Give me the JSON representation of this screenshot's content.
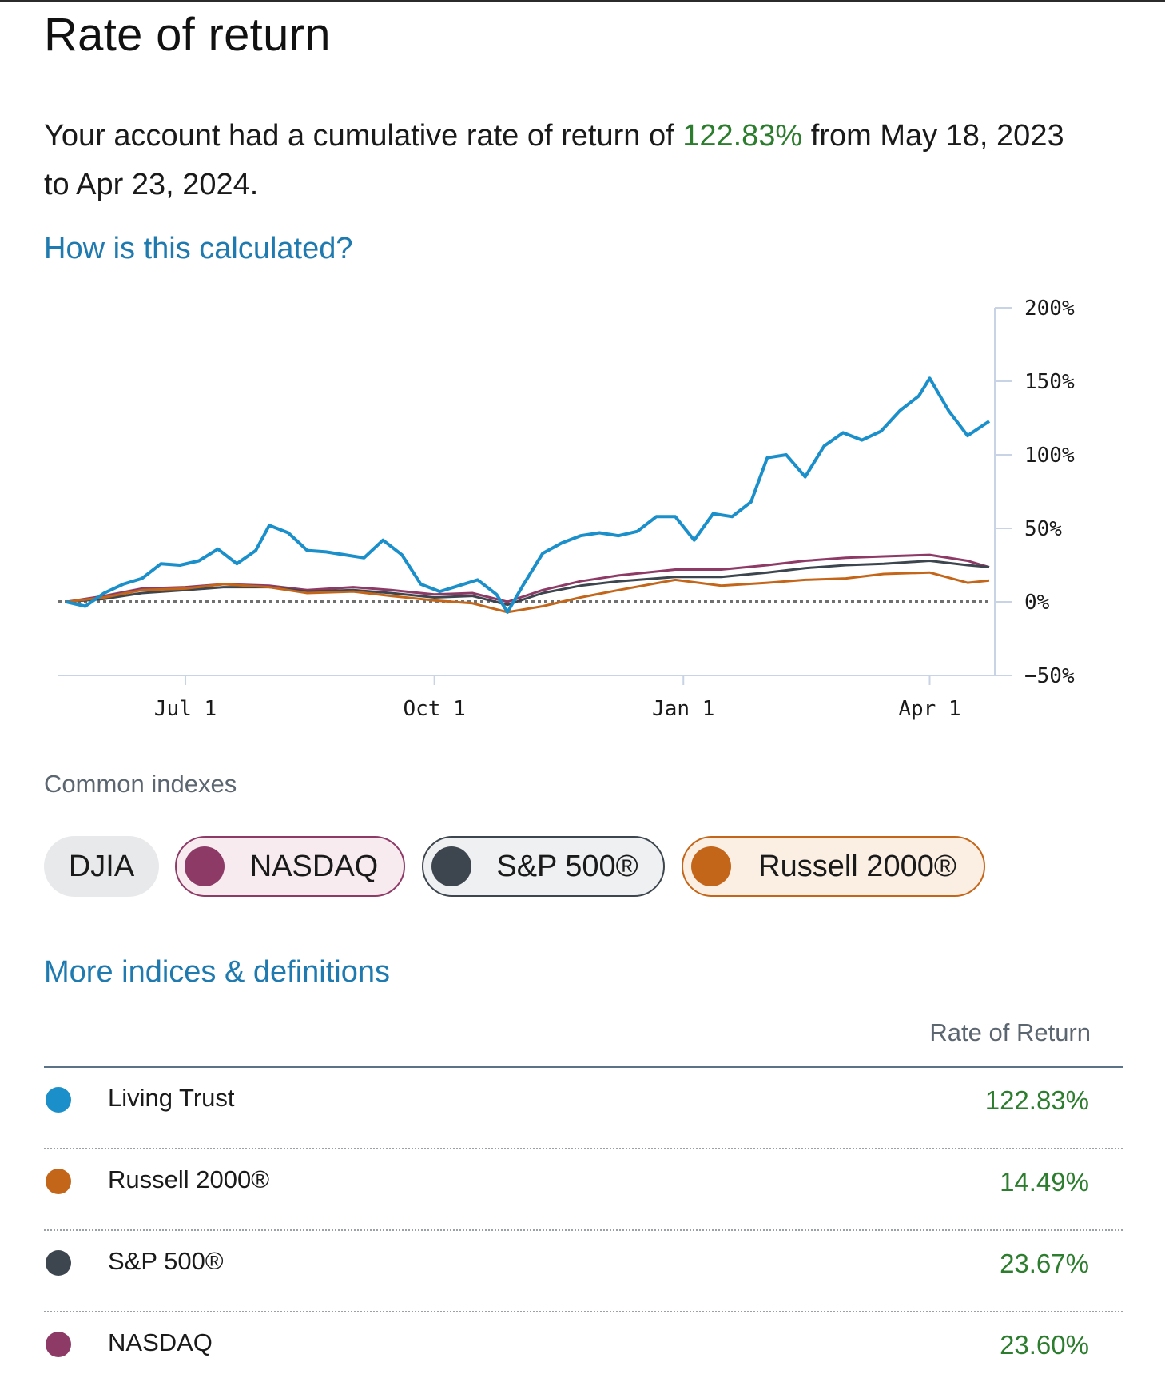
{
  "page": {
    "title": "Rate of return",
    "summary_prefix": "Your account had a cumulative rate of return of ",
    "summary_pct": "122.83%",
    "summary_suffix": " from May 18, 2023 to Apr 23, 2024.",
    "how_link": "How is this calculated?",
    "common_indexes_label": "Common indexes",
    "more_link": "More indices & definitions",
    "table_header": "Rate of Return"
  },
  "chips": [
    {
      "label": "DJIA",
      "color": "",
      "selected": false
    },
    {
      "label": "NASDAQ",
      "color": "#8e3a67",
      "selected": true
    },
    {
      "label": "S&P 500®",
      "color": "#3d464e",
      "selected": true
    },
    {
      "label": "Russell 2000®",
      "color": "#c4661a",
      "selected": true
    }
  ],
  "rows": [
    {
      "name": "Living Trust",
      "value": "122.83%",
      "color": "#1a8fc9"
    },
    {
      "name": "Russell 2000®",
      "value": "14.49%",
      "color": "#c4661a"
    },
    {
      "name": "S&P 500®",
      "value": "23.67%",
      "color": "#3d464e"
    },
    {
      "name": "NASDAQ",
      "value": "23.60%",
      "color": "#8e3a67"
    }
  ],
  "chart_data": {
    "type": "line",
    "title": "",
    "xlabel": "",
    "ylabel": "",
    "x_range": [
      "2023-05-18",
      "2024-04-23"
    ],
    "ylim": [
      -50,
      200
    ],
    "y_ticks": [
      200,
      150,
      100,
      50,
      0,
      -50
    ],
    "y_tick_labels": [
      "200%",
      "150%",
      "100%",
      "50%",
      "0%",
      "−50%"
    ],
    "x_ticks": [
      {
        "date": "2023-07-01",
        "label": "Jul 1"
      },
      {
        "date": "2023-10-01",
        "label": "Oct 1"
      },
      {
        "date": "2024-01-01",
        "label": "Jan 1"
      },
      {
        "date": "2024-04-01",
        "label": "Apr 1"
      }
    ],
    "baseline": 0,
    "series": [
      {
        "name": "Living Trust",
        "color": "#1a8fc9",
        "points": [
          [
            "2023-05-18",
            0
          ],
          [
            "2023-05-25",
            -3
          ],
          [
            "2023-06-01",
            6
          ],
          [
            "2023-06-08",
            12
          ],
          [
            "2023-06-15",
            16
          ],
          [
            "2023-06-22",
            26
          ],
          [
            "2023-06-29",
            25
          ],
          [
            "2023-07-06",
            28
          ],
          [
            "2023-07-13",
            36
          ],
          [
            "2023-07-20",
            26
          ],
          [
            "2023-07-27",
            35
          ],
          [
            "2023-08-01",
            52
          ],
          [
            "2023-08-08",
            47
          ],
          [
            "2023-08-15",
            35
          ],
          [
            "2023-08-22",
            34
          ],
          [
            "2023-08-29",
            32
          ],
          [
            "2023-09-05",
            30
          ],
          [
            "2023-09-12",
            42
          ],
          [
            "2023-09-19",
            32
          ],
          [
            "2023-09-26",
            12
          ],
          [
            "2023-10-03",
            7
          ],
          [
            "2023-10-10",
            11
          ],
          [
            "2023-10-17",
            15
          ],
          [
            "2023-10-24",
            5
          ],
          [
            "2023-10-28",
            -7
          ],
          [
            "2023-11-03",
            12
          ],
          [
            "2023-11-10",
            33
          ],
          [
            "2023-11-17",
            40
          ],
          [
            "2023-11-24",
            45
          ],
          [
            "2023-12-01",
            47
          ],
          [
            "2023-12-08",
            45
          ],
          [
            "2023-12-15",
            48
          ],
          [
            "2023-12-22",
            58
          ],
          [
            "2023-12-29",
            58
          ],
          [
            "2024-01-05",
            42
          ],
          [
            "2024-01-12",
            60
          ],
          [
            "2024-01-19",
            58
          ],
          [
            "2024-01-26",
            68
          ],
          [
            "2024-02-01",
            98
          ],
          [
            "2024-02-08",
            100
          ],
          [
            "2024-02-15",
            85
          ],
          [
            "2024-02-22",
            106
          ],
          [
            "2024-02-29",
            115
          ],
          [
            "2024-03-07",
            110
          ],
          [
            "2024-03-14",
            116
          ],
          [
            "2024-03-21",
            130
          ],
          [
            "2024-03-28",
            140
          ],
          [
            "2024-04-01",
            152
          ],
          [
            "2024-04-08",
            130
          ],
          [
            "2024-04-15",
            113
          ],
          [
            "2024-04-23",
            122.83
          ]
        ]
      },
      {
        "name": "NASDAQ",
        "color": "#8e3a67",
        "points": [
          [
            "2023-05-18",
            0
          ],
          [
            "2023-06-01",
            4
          ],
          [
            "2023-06-15",
            9
          ],
          [
            "2023-07-01",
            10
          ],
          [
            "2023-07-15",
            12
          ],
          [
            "2023-08-01",
            11
          ],
          [
            "2023-08-15",
            8
          ],
          [
            "2023-09-01",
            10
          ],
          [
            "2023-09-15",
            8
          ],
          [
            "2023-10-01",
            5
          ],
          [
            "2023-10-15",
            6
          ],
          [
            "2023-10-28",
            0
          ],
          [
            "2023-11-10",
            8
          ],
          [
            "2023-11-24",
            14
          ],
          [
            "2023-12-08",
            18
          ],
          [
            "2023-12-29",
            22
          ],
          [
            "2024-01-15",
            22
          ],
          [
            "2024-02-01",
            25
          ],
          [
            "2024-02-15",
            28
          ],
          [
            "2024-03-01",
            30
          ],
          [
            "2024-03-15",
            31
          ],
          [
            "2024-04-01",
            32
          ],
          [
            "2024-04-15",
            28
          ],
          [
            "2024-04-23",
            23.6
          ]
        ]
      },
      {
        "name": "S&P 500®",
        "color": "#3d464e",
        "points": [
          [
            "2023-05-18",
            0
          ],
          [
            "2023-06-01",
            2
          ],
          [
            "2023-06-15",
            6
          ],
          [
            "2023-07-01",
            8
          ],
          [
            "2023-07-15",
            10
          ],
          [
            "2023-08-01",
            10
          ],
          [
            "2023-08-15",
            7
          ],
          [
            "2023-09-01",
            8
          ],
          [
            "2023-09-15",
            6
          ],
          [
            "2023-10-01",
            3
          ],
          [
            "2023-10-15",
            4
          ],
          [
            "2023-10-28",
            -2
          ],
          [
            "2023-11-10",
            6
          ],
          [
            "2023-11-24",
            11
          ],
          [
            "2023-12-08",
            14
          ],
          [
            "2023-12-29",
            17
          ],
          [
            "2024-01-15",
            17
          ],
          [
            "2024-02-01",
            20
          ],
          [
            "2024-02-15",
            23
          ],
          [
            "2024-03-01",
            25
          ],
          [
            "2024-03-15",
            26
          ],
          [
            "2024-04-01",
            28
          ],
          [
            "2024-04-15",
            25
          ],
          [
            "2024-04-23",
            23.67
          ]
        ]
      },
      {
        "name": "Russell 2000®",
        "color": "#c4661a",
        "points": [
          [
            "2023-05-18",
            0
          ],
          [
            "2023-06-01",
            3
          ],
          [
            "2023-06-15",
            8
          ],
          [
            "2023-07-01",
            9
          ],
          [
            "2023-07-15",
            12
          ],
          [
            "2023-08-01",
            10
          ],
          [
            "2023-08-15",
            6
          ],
          [
            "2023-09-01",
            7
          ],
          [
            "2023-09-15",
            4
          ],
          [
            "2023-10-01",
            1
          ],
          [
            "2023-10-15",
            -1
          ],
          [
            "2023-10-28",
            -7
          ],
          [
            "2023-11-10",
            -3
          ],
          [
            "2023-11-24",
            3
          ],
          [
            "2023-12-08",
            8
          ],
          [
            "2023-12-29",
            15
          ],
          [
            "2024-01-15",
            11
          ],
          [
            "2024-02-01",
            13
          ],
          [
            "2024-02-15",
            15
          ],
          [
            "2024-03-01",
            16
          ],
          [
            "2024-03-15",
            19
          ],
          [
            "2024-04-01",
            20
          ],
          [
            "2024-04-15",
            13
          ],
          [
            "2024-04-23",
            14.49
          ]
        ]
      }
    ]
  }
}
